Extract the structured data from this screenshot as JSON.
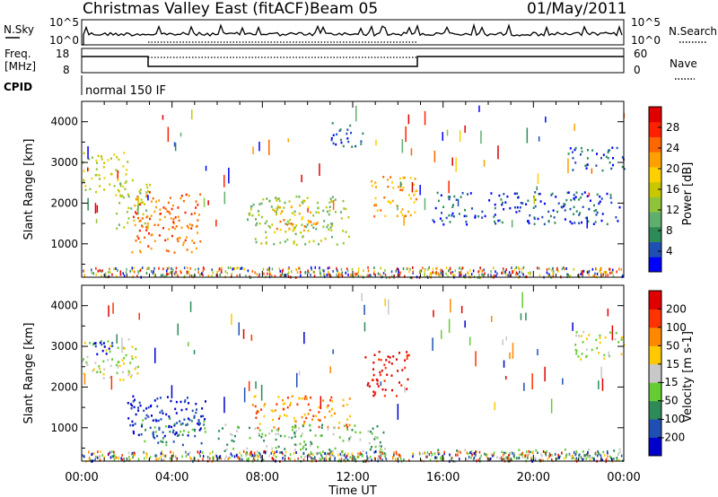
{
  "header": {
    "title": "Christmas Valley East (fitACF)",
    "beam": "Beam 05",
    "date": "01/May/2011"
  },
  "strips": {
    "nsky_label": "N.Sky",
    "nsky_ticks": [
      "10^5",
      "10^0"
    ],
    "nsearch_label": "N.Search",
    "freq_label": [
      "Freq.",
      "[MHz]"
    ],
    "freq_ticks": [
      "18",
      "8"
    ],
    "nave_label": "Nave",
    "nave_ticks": [
      "60",
      "0"
    ],
    "cpid_label": "CPID",
    "cpid_value": "normal 150 IF"
  },
  "chart_data": [
    {
      "type": "heatmap",
      "name": "power",
      "ylabel": "Slant Range [km]",
      "ylim": [
        180,
        4500
      ],
      "yticks": [
        "4000",
        "3000",
        "2000",
        "1000"
      ],
      "xlim": [
        0,
        24
      ],
      "colorbar": {
        "label": "Power [dB]",
        "ticks": [
          "28",
          "24",
          "20",
          "16",
          "12",
          "8",
          "4"
        ],
        "colors": [
          "#0000ff",
          "#1f4fb4",
          "#2e8b57",
          "#5fae6e",
          "#8fc43a",
          "#c8c800",
          "#ffd000",
          "#ffa000",
          "#ff6600",
          "#ff2000",
          "#e00000"
        ]
      },
      "regions": [
        {
          "t": [
            0.0,
            2.0
          ],
          "r": [
            2200,
            3300
          ],
          "level": 5
        },
        {
          "t": [
            1.5,
            3.0
          ],
          "r": [
            1400,
            2600
          ],
          "level": 4
        },
        {
          "t": [
            2.2,
            5.3
          ],
          "r": [
            800,
            2300
          ],
          "level": 8
        },
        {
          "t": [
            7.3,
            11.8
          ],
          "r": [
            1000,
            2200
          ],
          "level": 4
        },
        {
          "t": [
            8.5,
            10.5
          ],
          "r": [
            1300,
            2000
          ],
          "level": 7
        },
        {
          "t": [
            12.7,
            14.8
          ],
          "r": [
            1700,
            2700
          ],
          "level": 7
        },
        {
          "t": [
            11.0,
            12.5
          ],
          "r": [
            3400,
            4000
          ],
          "level": 1
        },
        {
          "t": [
            15.5,
            23.8
          ],
          "r": [
            1500,
            2300
          ],
          "level": 1
        },
        {
          "t": [
            21.5,
            24.0
          ],
          "r": [
            2800,
            3400
          ],
          "level": 1
        }
      ]
    },
    {
      "type": "heatmap",
      "name": "velocity",
      "ylabel": "Slant Range [km]",
      "ylim": [
        180,
        4500
      ],
      "yticks": [
        "4000",
        "3000",
        "2000",
        "1000"
      ],
      "xlabel": "Time UT",
      "xticks": [
        "00:00",
        "04:00",
        "08:00",
        "12:00",
        "16:00",
        "20:00",
        "00:00"
      ],
      "xlim": [
        0,
        24
      ],
      "colorbar": {
        "label": "Velocity [m s-1]",
        "ticks": [
          "200",
          "100",
          "50",
          "15",
          "-15",
          "-50",
          "-100",
          "-200"
        ],
        "colors": [
          "#0000cc",
          "#1f4fb4",
          "#2e8b57",
          "#66cc33",
          "#c8c8c8",
          "#ffc800",
          "#ff8800",
          "#ff3300",
          "#e00000"
        ]
      },
      "regions": [
        {
          "t": [
            0.0,
            2.5
          ],
          "r": [
            2200,
            3200
          ],
          "level": 4
        },
        {
          "t": [
            0.5,
            1.5
          ],
          "r": [
            2800,
            3300
          ],
          "level": 0
        },
        {
          "t": [
            2.0,
            5.5
          ],
          "r": [
            800,
            1800
          ],
          "level": 0
        },
        {
          "t": [
            2.5,
            5.5
          ],
          "r": [
            600,
            1300
          ],
          "level": 2
        },
        {
          "t": [
            7.5,
            12.0
          ],
          "r": [
            1000,
            1800
          ],
          "level": 6
        },
        {
          "t": [
            6.0,
            13.5
          ],
          "r": [
            200,
            1100
          ],
          "level": 3
        },
        {
          "t": [
            12.5,
            14.5
          ],
          "r": [
            1800,
            2900
          ],
          "level": 8
        },
        {
          "t": [
            15.5,
            24.0
          ],
          "r": [
            200,
            500
          ],
          "level": 3
        },
        {
          "t": [
            21.8,
            24.0
          ],
          "r": [
            2700,
            3400
          ],
          "level": 4
        }
      ]
    }
  ]
}
